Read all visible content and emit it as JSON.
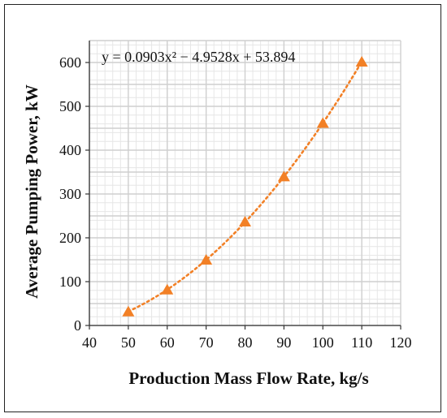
{
  "chart_data": {
    "type": "scatter",
    "xlabel": "Production Mass Flow Rate, kg/s",
    "ylabel": "Average Pumping Power, kW",
    "xlim": [
      40,
      120
    ],
    "ylim": [
      0,
      650
    ],
    "xticks": [
      40,
      50,
      60,
      70,
      80,
      90,
      100,
      110,
      120
    ],
    "yticks": [
      0,
      100,
      200,
      300,
      400,
      500,
      600
    ],
    "grid": true,
    "minor_grid": true,
    "series": [
      {
        "x": [
          50,
          60,
          70,
          80,
          90,
          100,
          110
        ],
        "y": [
          30,
          80,
          148,
          235,
          338,
          460,
          600
        ],
        "marker": "triangle",
        "color": "#F28026"
      }
    ],
    "trendline": {
      "type": "polynomial",
      "order": 2,
      "coefficients": [
        0.0903,
        -4.9528,
        53.894
      ],
      "style": "dotted",
      "color": "#F28026",
      "equation_label": "y = 0.0903x² − 4.9528x + 53.894"
    }
  }
}
